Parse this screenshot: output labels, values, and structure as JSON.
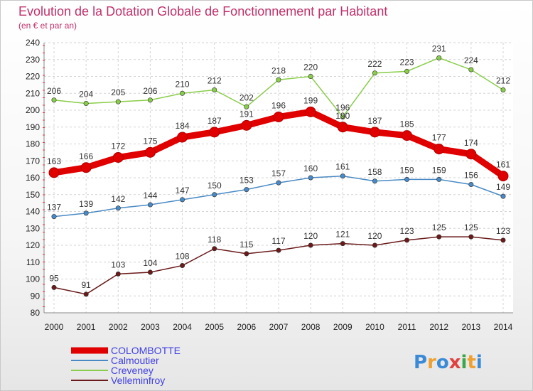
{
  "chart_data": {
    "type": "line",
    "title": "Evolution de la Dotation Globale de Fonctionnement par Habitant",
    "subtitle": "(en € et par an)",
    "x": [
      2000,
      2001,
      2002,
      2003,
      2004,
      2005,
      2006,
      2007,
      2008,
      2009,
      2010,
      2011,
      2012,
      2013,
      2014
    ],
    "ylim": [
      80,
      240
    ],
    "yticks": [
      80,
      90,
      100,
      110,
      120,
      130,
      140,
      150,
      160,
      170,
      180,
      190,
      200,
      210,
      220,
      230,
      240
    ],
    "grid": true,
    "legend_position": "bottom-left",
    "series": [
      {
        "name": "COLOMBOTTE",
        "color": "#e00000",
        "label_color": "#4040e0",
        "emphasis": true,
        "values": [
          163,
          166,
          172,
          175,
          184,
          187,
          191,
          196,
          199,
          190,
          187,
          185,
          177,
          174,
          161
        ]
      },
      {
        "name": "Calmoutier",
        "color": "#4a8ac4",
        "label_color": "#4040e0",
        "values": [
          137,
          139,
          142,
          144,
          147,
          150,
          153,
          157,
          160,
          161,
          158,
          159,
          159,
          156,
          149
        ]
      },
      {
        "name": "Creveney",
        "color": "#8acd4a",
        "label_color": "#4040e0",
        "values": [
          206,
          204,
          205,
          206,
          210,
          212,
          202,
          218,
          220,
          196,
          222,
          223,
          231,
          224,
          212
        ]
      },
      {
        "name": "Velleminfroy",
        "color": "#6a1a1a",
        "label_color": "#4040e0",
        "values": [
          95,
          91,
          103,
          104,
          108,
          118,
          115,
          117,
          120,
          121,
          120,
          123,
          125,
          125,
          123
        ]
      }
    ]
  },
  "logo": {
    "text": "Proxiti",
    "letters": [
      {
        "ch": "P",
        "color": "#3a8ad8"
      },
      {
        "ch": "r",
        "color": "#f0a030"
      },
      {
        "ch": "o",
        "color": "#3a8ad8"
      },
      {
        "ch": "x",
        "color": "#e04040"
      },
      {
        "ch": "i",
        "color": "#3aa84a"
      },
      {
        "ch": "t",
        "color": "#f0a030"
      },
      {
        "ch": "i",
        "color": "#3a8ad8"
      }
    ]
  }
}
